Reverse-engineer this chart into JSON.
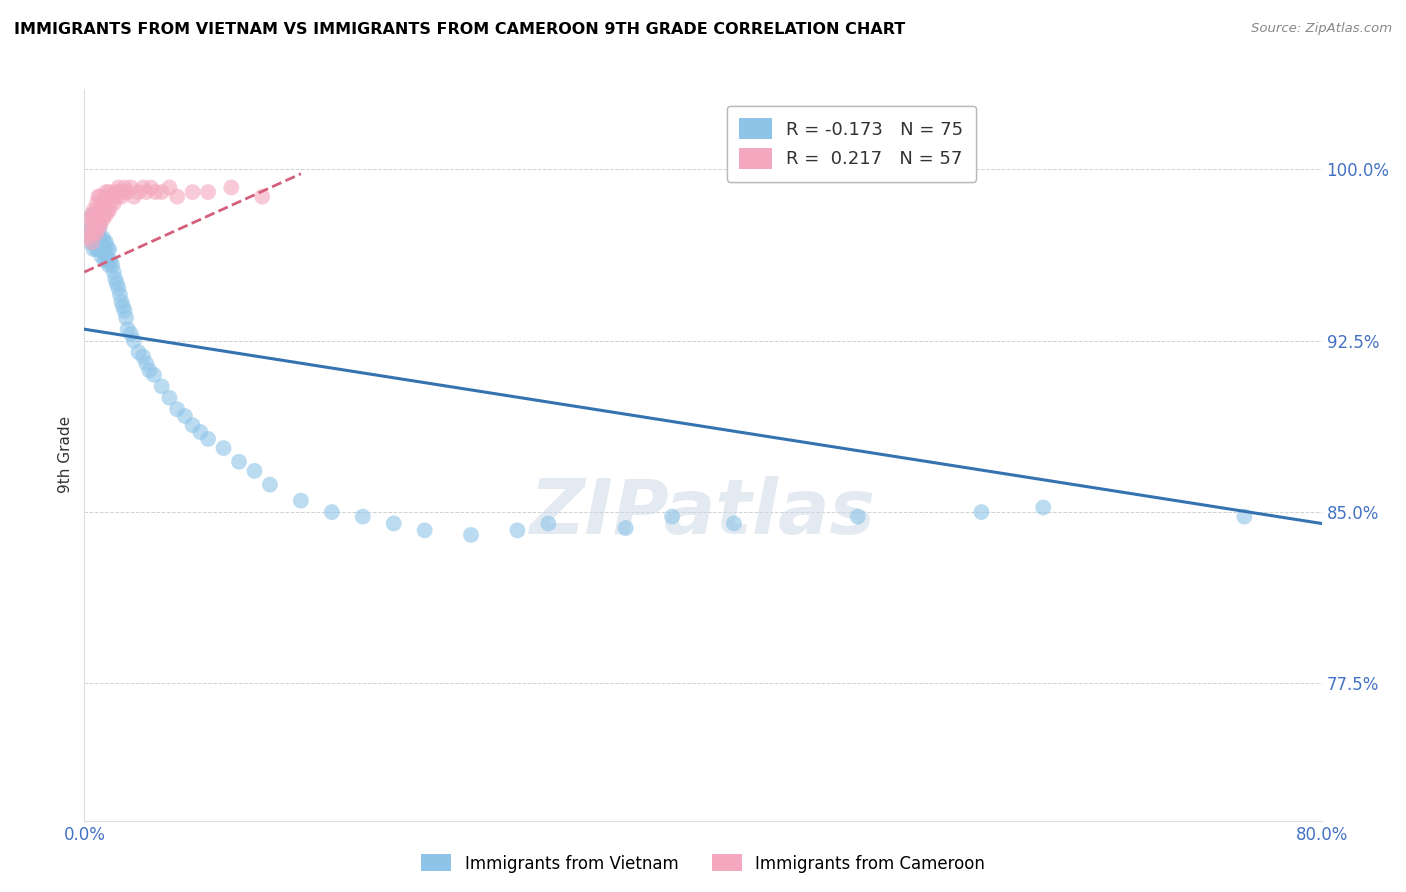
{
  "title": "IMMIGRANTS FROM VIETNAM VS IMMIGRANTS FROM CAMEROON 9TH GRADE CORRELATION CHART",
  "source": "Source: ZipAtlas.com",
  "ylabel": "9th Grade",
  "blue_color": "#8ec4e8",
  "pink_color": "#f4a8bf",
  "blue_line_color": "#3572b0",
  "pink_line_color": "#d45f7a",
  "watermark": "ZIPatlas",
  "xlim": [
    0.0,
    0.8
  ],
  "ylim": [
    0.715,
    1.035
  ],
  "ytick_values": [
    1.0,
    0.925,
    0.85,
    0.775
  ],
  "ytick_labels": [
    "100.0%",
    "92.5%",
    "85.0%",
    "77.5%"
  ],
  "xtick_values": [
    0.0,
    0.8
  ],
  "xtick_labels": [
    "0.0%",
    "80.0%"
  ],
  "blue_trendline_x": [
    0.0,
    0.8
  ],
  "blue_trendline_y": [
    0.93,
    0.845
  ],
  "pink_trendline_x": [
    0.0,
    0.14
  ],
  "pink_trendline_y": [
    0.955,
    0.998
  ],
  "viet_x": [
    0.003,
    0.004,
    0.005,
    0.005,
    0.006,
    0.006,
    0.007,
    0.007,
    0.008,
    0.008,
    0.008,
    0.009,
    0.009,
    0.009,
    0.01,
    0.01,
    0.01,
    0.011,
    0.011,
    0.012,
    0.012,
    0.013,
    0.013,
    0.013,
    0.014,
    0.014,
    0.015,
    0.015,
    0.016,
    0.016,
    0.017,
    0.018,
    0.019,
    0.02,
    0.021,
    0.022,
    0.023,
    0.024,
    0.025,
    0.026,
    0.027,
    0.028,
    0.03,
    0.032,
    0.035,
    0.038,
    0.04,
    0.042,
    0.045,
    0.05,
    0.055,
    0.06,
    0.065,
    0.07,
    0.075,
    0.08,
    0.09,
    0.1,
    0.11,
    0.12,
    0.14,
    0.16,
    0.18,
    0.2,
    0.22,
    0.25,
    0.28,
    0.3,
    0.35,
    0.38,
    0.42,
    0.5,
    0.58,
    0.62,
    0.75
  ],
  "viet_y": [
    0.975,
    0.968,
    0.972,
    0.98,
    0.97,
    0.965,
    0.975,
    0.968,
    0.97,
    0.965,
    0.975,
    0.972,
    0.965,
    0.968,
    0.97,
    0.965,
    0.975,
    0.968,
    0.962,
    0.965,
    0.97,
    0.965,
    0.96,
    0.968,
    0.962,
    0.968,
    0.96,
    0.965,
    0.958,
    0.965,
    0.96,
    0.958,
    0.955,
    0.952,
    0.95,
    0.948,
    0.945,
    0.942,
    0.94,
    0.938,
    0.935,
    0.93,
    0.928,
    0.925,
    0.92,
    0.918,
    0.915,
    0.912,
    0.91,
    0.905,
    0.9,
    0.895,
    0.892,
    0.888,
    0.885,
    0.882,
    0.878,
    0.872,
    0.868,
    0.862,
    0.855,
    0.85,
    0.848,
    0.845,
    0.842,
    0.84,
    0.842,
    0.845,
    0.843,
    0.848,
    0.845,
    0.848,
    0.85,
    0.852,
    0.848
  ],
  "cam_x": [
    0.003,
    0.004,
    0.004,
    0.005,
    0.005,
    0.005,
    0.006,
    0.006,
    0.006,
    0.007,
    0.007,
    0.008,
    0.008,
    0.008,
    0.009,
    0.009,
    0.009,
    0.01,
    0.01,
    0.01,
    0.011,
    0.011,
    0.012,
    0.012,
    0.013,
    0.013,
    0.014,
    0.014,
    0.015,
    0.015,
    0.016,
    0.016,
    0.017,
    0.018,
    0.019,
    0.02,
    0.021,
    0.022,
    0.023,
    0.024,
    0.025,
    0.026,
    0.028,
    0.03,
    0.032,
    0.035,
    0.038,
    0.04,
    0.043,
    0.046,
    0.05,
    0.055,
    0.06,
    0.07,
    0.08,
    0.095,
    0.115
  ],
  "cam_y": [
    0.97,
    0.972,
    0.978,
    0.968,
    0.975,
    0.98,
    0.972,
    0.978,
    0.982,
    0.975,
    0.98,
    0.972,
    0.978,
    0.985,
    0.975,
    0.982,
    0.988,
    0.975,
    0.98,
    0.988,
    0.978,
    0.985,
    0.978,
    0.985,
    0.98,
    0.988,
    0.98,
    0.99,
    0.982,
    0.988,
    0.982,
    0.99,
    0.985,
    0.988,
    0.985,
    0.99,
    0.988,
    0.992,
    0.99,
    0.988,
    0.99,
    0.992,
    0.99,
    0.992,
    0.988,
    0.99,
    0.992,
    0.99,
    0.992,
    0.99,
    0.99,
    0.992,
    0.988,
    0.99,
    0.99,
    0.992,
    0.988
  ]
}
